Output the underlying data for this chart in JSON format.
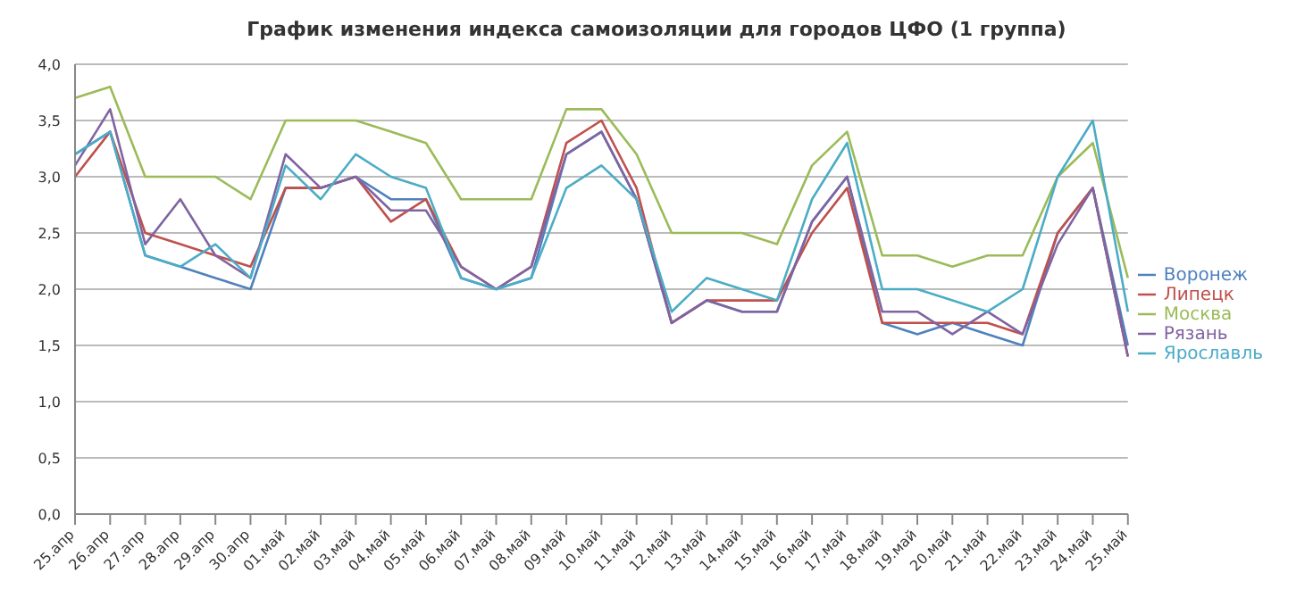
{
  "chart_data": {
    "type": "line",
    "title": "График изменения индекса самоизоляции для городов ЦФО (1 группа)",
    "categories": [
      "25.апр",
      "26.апр",
      "27.апр",
      "28.апр",
      "29.апр",
      "30.апр",
      "01.май",
      "02.май",
      "03.май",
      "04.май",
      "05.май",
      "06.май",
      "07.май",
      "08.май",
      "09.май",
      "10.май",
      "11.май",
      "12.май",
      "13.май",
      "14.май",
      "15.май",
      "16.май",
      "17.май",
      "18.май",
      "19.май",
      "20.май",
      "21.май",
      "22.май",
      "23.май",
      "24.май",
      "25.май"
    ],
    "series": [
      {
        "name": "Воронеж",
        "color": "#4f81bd",
        "values": [
          3.2,
          3.4,
          2.3,
          2.2,
          2.1,
          2.0,
          2.9,
          2.9,
          3.0,
          2.8,
          2.8,
          2.1,
          2.0,
          2.1,
          3.2,
          3.4,
          2.8,
          1.7,
          1.9,
          1.8,
          1.8,
          2.6,
          3.0,
          1.7,
          1.6,
          1.7,
          1.6,
          1.5,
          2.5,
          2.9,
          1.5
        ]
      },
      {
        "name": "Липецк",
        "color": "#c0504d",
        "values": [
          3.0,
          3.4,
          2.5,
          2.4,
          2.3,
          2.2,
          2.9,
          2.9,
          3.0,
          2.6,
          2.8,
          2.2,
          2.0,
          2.2,
          3.3,
          3.5,
          2.9,
          1.7,
          1.9,
          1.9,
          1.9,
          2.5,
          2.9,
          1.7,
          1.7,
          1.7,
          1.7,
          1.6,
          2.5,
          2.9,
          1.4
        ]
      },
      {
        "name": "Москва",
        "color": "#9bbb59",
        "values": [
          3.7,
          3.8,
          3.0,
          3.0,
          3.0,
          2.8,
          3.5,
          3.5,
          3.5,
          3.4,
          3.3,
          2.8,
          2.8,
          2.8,
          3.6,
          3.6,
          3.2,
          2.5,
          2.5,
          2.5,
          2.4,
          3.1,
          3.4,
          2.3,
          2.3,
          2.2,
          2.3,
          2.3,
          3.0,
          3.3,
          2.1
        ]
      },
      {
        "name": "Рязань",
        "color": "#8064a2",
        "values": [
          3.1,
          3.6,
          2.4,
          2.8,
          2.3,
          2.1,
          3.2,
          2.9,
          3.0,
          2.7,
          2.7,
          2.2,
          2.0,
          2.2,
          3.2,
          3.4,
          2.8,
          1.7,
          1.9,
          1.8,
          1.8,
          2.6,
          3.0,
          1.8,
          1.8,
          1.6,
          1.8,
          1.6,
          2.4,
          2.9,
          1.4
        ]
      },
      {
        "name": "Ярославль",
        "color": "#4bacc6",
        "values": [
          3.2,
          3.4,
          2.3,
          2.2,
          2.4,
          2.1,
          3.1,
          2.8,
          3.2,
          3.0,
          2.9,
          2.1,
          2.0,
          2.1,
          2.9,
          3.1,
          2.8,
          1.8,
          2.1,
          2.0,
          1.9,
          2.8,
          3.3,
          2.0,
          2.0,
          1.9,
          1.8,
          2.0,
          3.0,
          3.5,
          1.8
        ]
      }
    ],
    "ylim": [
      0,
      4
    ],
    "yticks": [
      {
        "value": 0,
        "label": "0,0"
      },
      {
        "value": 0.5,
        "label": "0,5"
      },
      {
        "value": 1,
        "label": "1,0"
      },
      {
        "value": 1.5,
        "label": "1,5"
      },
      {
        "value": 2,
        "label": "2,0"
      },
      {
        "value": 2.5,
        "label": "2,5"
      },
      {
        "value": 3,
        "label": "3,0"
      },
      {
        "value": 3.5,
        "label": "3,5"
      },
      {
        "value": 4,
        "label": "4,0"
      }
    ],
    "grid": "y",
    "legend": "right",
    "marker": "none"
  }
}
